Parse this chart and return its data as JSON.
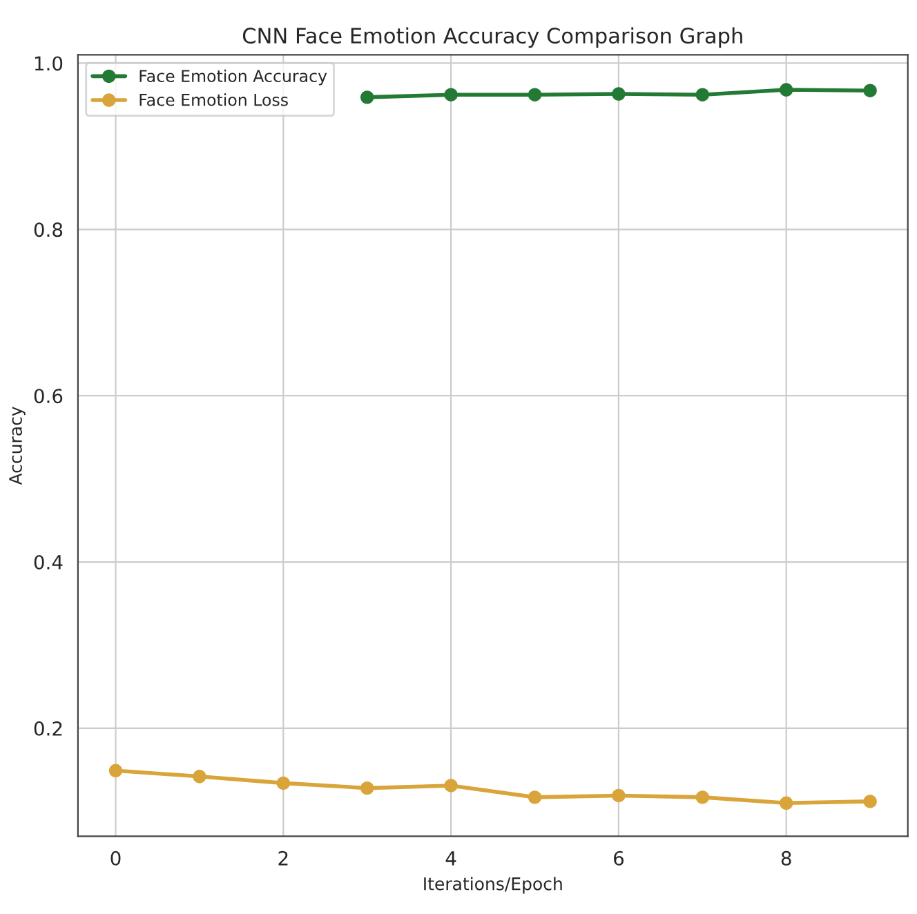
{
  "chart_data": {
    "type": "line",
    "title": "CNN Face Emotion Accuracy Comparison Graph",
    "xlabel": "Iterations/Epoch",
    "ylabel": "Accuracy",
    "x": [
      0,
      1,
      2,
      3,
      4,
      5,
      6,
      7,
      8,
      9
    ],
    "series": [
      {
        "name": "Face Emotion Accuracy",
        "color": "#237a35",
        "values": [
          null,
          null,
          null,
          0.959,
          0.962,
          0.962,
          0.963,
          0.962,
          0.968,
          0.967
        ]
      },
      {
        "name": "Face Emotion Loss",
        "color": "#d9a53a",
        "values": [
          0.149,
          0.142,
          0.134,
          0.128,
          0.131,
          0.117,
          0.119,
          0.117,
          0.11,
          0.112
        ]
      }
    ],
    "xlim": [
      -0.45,
      9.45
    ],
    "ylim": [
      0.07,
      1.01
    ],
    "xticks": [
      0,
      2,
      4,
      6,
      8
    ],
    "yticks": [
      0.2,
      0.4,
      0.6,
      0.8,
      {
        "value": 1.0,
        "label": "1.0"
      }
    ],
    "grid": true,
    "legend": "top left",
    "marker": "circle",
    "line_style": "solid"
  }
}
